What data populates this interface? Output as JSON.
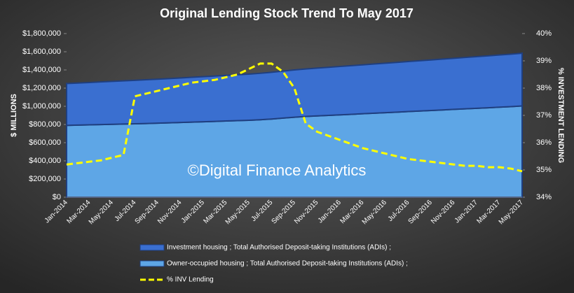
{
  "chart_data": {
    "type": "stacked-area-line",
    "title": "Original Lending Stock Trend To May 2017",
    "ylabel": "$ MILLIONS",
    "y2label": "% INVESTMENT LENDING",
    "annotation": "©Digital Finance Analytics",
    "categories": [
      "Jan-2014",
      null,
      "Mar-2014",
      null,
      "May-2014",
      null,
      "Jul-2014",
      null,
      "Sep-2014",
      null,
      "Nov-2014",
      null,
      "Jan-2015",
      null,
      "Mar-2015",
      null,
      "May-2015",
      null,
      "Jul-2015",
      null,
      "Sep-2015",
      null,
      "Nov-2015",
      null,
      "Jan-2016",
      null,
      "Mar-2016",
      null,
      "May-2016",
      null,
      "Jul-2016",
      null,
      "Sep-2016",
      null,
      "Nov-2016",
      null,
      "Jan-2017",
      null,
      "Mar-2017",
      null,
      "May-2017"
    ],
    "series": [
      {
        "name": "Investment housing ;  Total Authorised Deposit-taking Institutions (ADIs) ;",
        "color": "#3a6fd0",
        "kind": "area",
        "values": [
          460000,
          463000,
          466000,
          469000,
          472000,
          475000,
          478000,
          481000,
          484000,
          487000,
          490000,
          493000,
          496000,
          499000,
          502000,
          505000,
          508000,
          511000,
          514000,
          517000,
          520000,
          523000,
          526000,
          529000,
          532000,
          535000,
          538000,
          541000,
          544000,
          547000,
          550000,
          553000,
          556000,
          559000,
          562000,
          565000,
          568000,
          571000,
          574000,
          577000,
          580000
        ]
      },
      {
        "name": "Owner-occupied housing ;  Total Authorised Deposit-taking Institutions (ADIs) ;",
        "color": "#5ea6e6",
        "kind": "area",
        "values": [
          790000,
          793000,
          796000,
          799000,
          802000,
          805000,
          808000,
          811000,
          814000,
          818000,
          822000,
          826000,
          830000,
          834000,
          838000,
          842000,
          846000,
          852000,
          860000,
          870000,
          880000,
          888000,
          894000,
          900000,
          906000,
          912000,
          918000,
          924000,
          930000,
          936000,
          942000,
          948000,
          954000,
          960000,
          966000,
          972000,
          978000,
          984000,
          990000,
          996000,
          1004000
        ]
      },
      {
        "name": "% INV Lending",
        "color": "#ffff00",
        "kind": "line",
        "axis": "y2",
        "values": [
          35.2,
          35.25,
          35.3,
          35.35,
          35.45,
          35.55,
          37.7,
          37.8,
          37.9,
          38.0,
          38.1,
          38.2,
          38.25,
          38.3,
          38.4,
          38.5,
          38.7,
          38.9,
          38.9,
          38.6,
          38.0,
          36.7,
          36.4,
          36.25,
          36.1,
          35.95,
          35.8,
          35.7,
          35.6,
          35.5,
          35.4,
          35.35,
          35.3,
          35.25,
          35.2,
          35.15,
          35.15,
          35.1,
          35.1,
          35.05,
          34.95
        ]
      }
    ],
    "stack_order": [
      1,
      0
    ],
    "ylim": [
      0,
      1800000
    ],
    "yticks": [
      {
        "value": 0,
        "label": "$0"
      },
      {
        "value": 200000,
        "label": "$200,000"
      },
      {
        "value": 400000,
        "label": "$400,000"
      },
      {
        "value": 600000,
        "label": "$600,000"
      },
      {
        "value": 800000,
        "label": "$800,000"
      },
      {
        "value": 1000000,
        "label": "$1,000,000"
      },
      {
        "value": 1200000,
        "label": "$1,200,000"
      },
      {
        "value": 1400000,
        "label": "$1,400,000"
      },
      {
        "value": 1600000,
        "label": "$1,600,000"
      },
      {
        "value": 1800000,
        "label": "$1,800,000"
      }
    ],
    "y2lim": [
      34,
      40
    ],
    "y2ticks": [
      {
        "value": 34,
        "label": "34%"
      },
      {
        "value": 35,
        "label": "35%"
      },
      {
        "value": 36,
        "label": "36%"
      },
      {
        "value": 37,
        "label": "37%"
      },
      {
        "value": 38,
        "label": "38%"
      },
      {
        "value": 39,
        "label": "39%"
      },
      {
        "value": 40,
        "label": "40%"
      }
    ],
    "legend": "bottom"
  }
}
